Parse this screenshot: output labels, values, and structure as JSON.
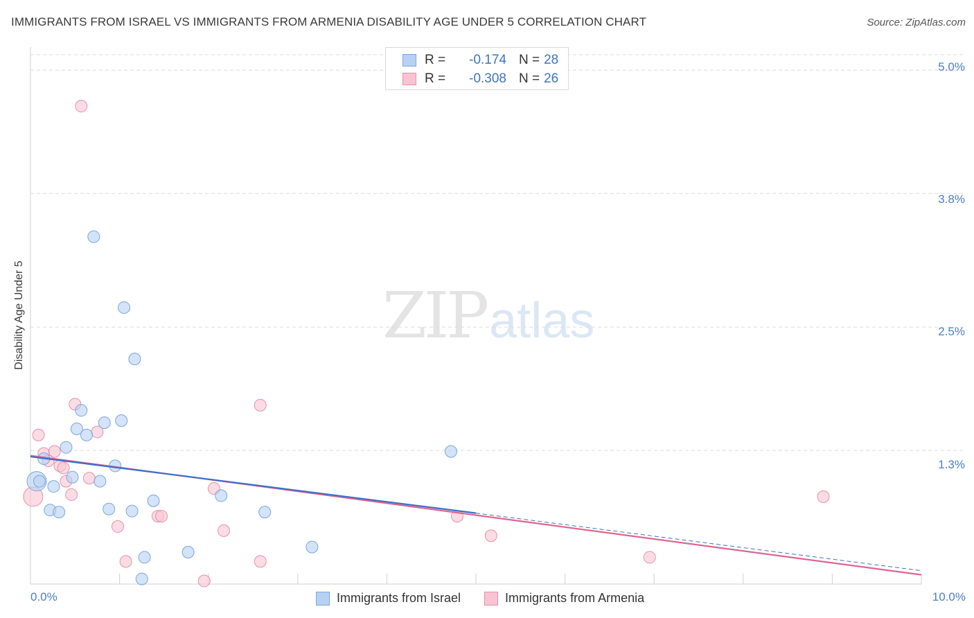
{
  "title": "IMMIGRANTS FROM ISRAEL VS IMMIGRANTS FROM ARMENIA DISABILITY AGE UNDER 5 CORRELATION CHART",
  "source": "Source: ZipAtlas.com",
  "watermark": {
    "zip": "ZIP",
    "atlas": "atlas"
  },
  "legend": {
    "r_label": "R =",
    "n_label": "N =",
    "rows": [
      {
        "r": "-0.174",
        "n": "28"
      },
      {
        "r": "-0.308",
        "n": "26"
      }
    ]
  },
  "colors": {
    "israel_fill": "#b8d1f2",
    "israel_stroke": "#7aa6de",
    "israel_line": "#3a6fcc",
    "armenia_fill": "#f8c4d4",
    "armenia_stroke": "#e98fab",
    "armenia_line": "#e0648f",
    "tick_text": "#4a7fc8",
    "grid": "#dcdcdc"
  },
  "chart_data": {
    "type": "scatter",
    "title": "IMMIGRANTS FROM ISRAEL VS IMMIGRANTS FROM ARMENIA DISABILITY AGE UNDER 5 CORRELATION CHART",
    "xlabel": "",
    "ylabel": "Disability Age Under 5",
    "xlim": [
      0,
      10
    ],
    "ylim": [
      0,
      5.15
    ],
    "x_tick_labels": [
      "0.0%",
      "10.0%"
    ],
    "y_ticks": [
      1.3,
      2.5,
      3.8,
      5.0
    ],
    "y_tick_labels": [
      "1.3%",
      "2.5%",
      "3.8%",
      "5.0%"
    ],
    "grid": true,
    "legend_position": "top-center",
    "series": [
      {
        "name": "Immigrants from Israel",
        "r": -0.174,
        "n": 28,
        "trend": {
          "x0": 0.0,
          "y0": 1.24,
          "x1": 5.0,
          "y1": 0.69,
          "dashed_to_x": 10.0,
          "dashed_to_y": 0.13
        },
        "points": [
          {
            "x": 0.07,
            "y": 1.0,
            "s": 2
          },
          {
            "x": 0.1,
            "y": 1.0,
            "s": 1
          },
          {
            "x": 0.15,
            "y": 1.22,
            "s": 1
          },
          {
            "x": 0.26,
            "y": 0.95,
            "s": 1
          },
          {
            "x": 0.22,
            "y": 0.72,
            "s": 1
          },
          {
            "x": 0.32,
            "y": 0.7,
            "s": 1
          },
          {
            "x": 0.4,
            "y": 1.33,
            "s": 1
          },
          {
            "x": 0.47,
            "y": 1.04,
            "s": 1
          },
          {
            "x": 0.52,
            "y": 1.51,
            "s": 1
          },
          {
            "x": 0.57,
            "y": 1.69,
            "s": 1
          },
          {
            "x": 0.63,
            "y": 1.45,
            "s": 1
          },
          {
            "x": 0.71,
            "y": 3.38,
            "s": 1
          },
          {
            "x": 0.78,
            "y": 1.0,
            "s": 1
          },
          {
            "x": 0.83,
            "y": 1.57,
            "s": 1
          },
          {
            "x": 0.88,
            "y": 0.73,
            "s": 1
          },
          {
            "x": 0.95,
            "y": 1.15,
            "s": 1
          },
          {
            "x": 1.02,
            "y": 1.59,
            "s": 1
          },
          {
            "x": 1.05,
            "y": 2.69,
            "s": 1
          },
          {
            "x": 1.14,
            "y": 0.71,
            "s": 1
          },
          {
            "x": 1.17,
            "y": 2.19,
            "s": 1
          },
          {
            "x": 1.28,
            "y": 0.26,
            "s": 1
          },
          {
            "x": 1.38,
            "y": 0.81,
            "s": 1
          },
          {
            "x": 1.25,
            "y": 0.05,
            "s": 1
          },
          {
            "x": 1.77,
            "y": 0.31,
            "s": 1
          },
          {
            "x": 2.14,
            "y": 0.86,
            "s": 1
          },
          {
            "x": 2.63,
            "y": 0.7,
            "s": 1
          },
          {
            "x": 3.16,
            "y": 0.36,
            "s": 1
          },
          {
            "x": 4.72,
            "y": 1.29,
            "s": 1
          }
        ]
      },
      {
        "name": "Immigrants from Armenia",
        "r": -0.308,
        "n": 26,
        "trend": {
          "x0": 0.0,
          "y0": 1.25,
          "x1": 10.0,
          "y1": 0.09
        },
        "points": [
          {
            "x": 0.03,
            "y": 0.85,
            "s": 2
          },
          {
            "x": 0.09,
            "y": 1.45,
            "s": 1
          },
          {
            "x": 0.15,
            "y": 1.27,
            "s": 1
          },
          {
            "x": 0.2,
            "y": 1.2,
            "s": 1
          },
          {
            "x": 0.27,
            "y": 1.29,
            "s": 1
          },
          {
            "x": 0.33,
            "y": 1.15,
            "s": 1
          },
          {
            "x": 0.37,
            "y": 1.13,
            "s": 1
          },
          {
            "x": 0.4,
            "y": 1.0,
            "s": 1
          },
          {
            "x": 0.46,
            "y": 0.87,
            "s": 1
          },
          {
            "x": 0.5,
            "y": 1.75,
            "s": 1
          },
          {
            "x": 0.57,
            "y": 4.65,
            "s": 1
          },
          {
            "x": 0.66,
            "y": 1.03,
            "s": 1
          },
          {
            "x": 0.75,
            "y": 1.48,
            "s": 1
          },
          {
            "x": 0.98,
            "y": 0.56,
            "s": 1
          },
          {
            "x": 1.07,
            "y": 0.22,
            "s": 1
          },
          {
            "x": 1.43,
            "y": 0.66,
            "s": 1
          },
          {
            "x": 1.47,
            "y": 0.66,
            "s": 1
          },
          {
            "x": 1.95,
            "y": 0.03,
            "s": 1
          },
          {
            "x": 2.06,
            "y": 0.93,
            "s": 1
          },
          {
            "x": 2.17,
            "y": 0.52,
            "s": 1
          },
          {
            "x": 2.58,
            "y": 1.74,
            "s": 1
          },
          {
            "x": 2.58,
            "y": 0.22,
            "s": 1
          },
          {
            "x": 4.79,
            "y": 0.66,
            "s": 1
          },
          {
            "x": 5.17,
            "y": 0.47,
            "s": 1
          },
          {
            "x": 6.95,
            "y": 0.26,
            "s": 1
          },
          {
            "x": 8.9,
            "y": 0.85,
            "s": 1
          }
        ]
      }
    ]
  }
}
